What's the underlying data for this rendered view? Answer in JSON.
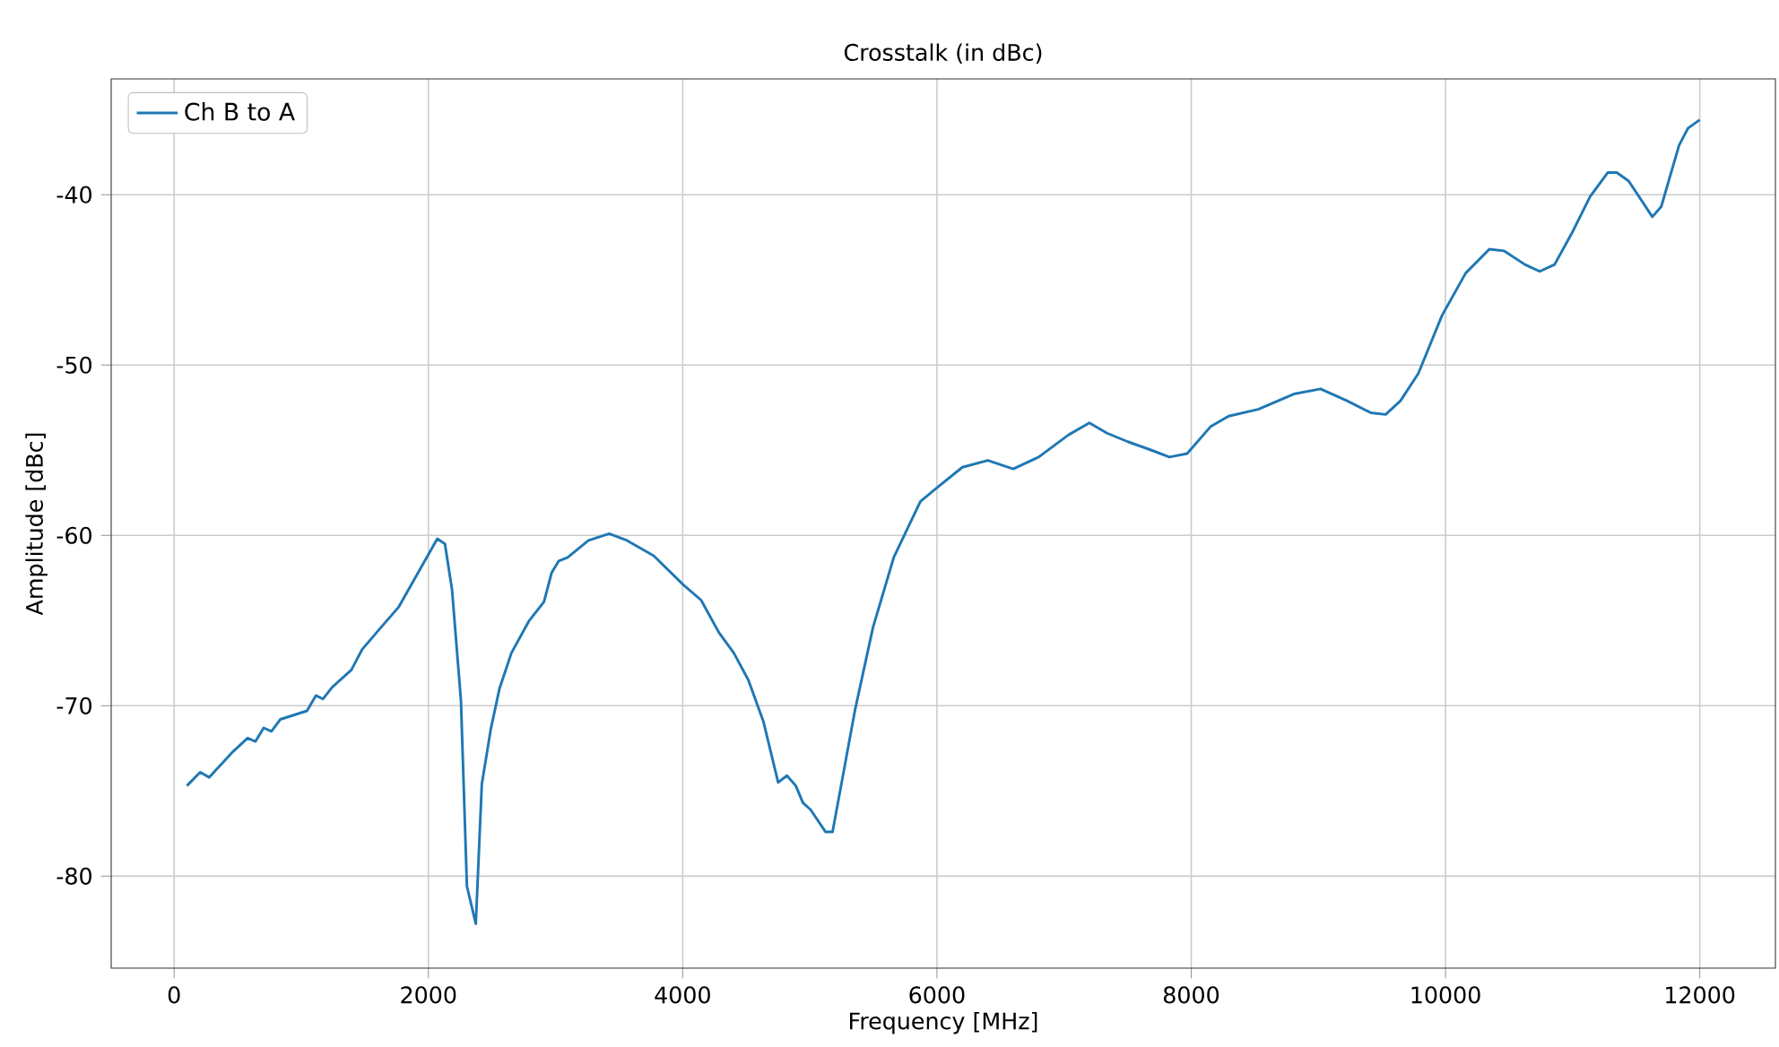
{
  "chart_data": {
    "type": "line",
    "title": "Crosstalk (in dBc)",
    "xlabel": "Frequency [MHz]",
    "ylabel": "Amplitude [dBc]",
    "xlim": [
      -495,
      12595
    ],
    "ylim": [
      -85.4,
      -33.2
    ],
    "xticks": [
      0,
      2000,
      4000,
      6000,
      8000,
      10000,
      12000
    ],
    "yticks": [
      -80,
      -70,
      -60,
      -50,
      -40
    ],
    "grid": true,
    "legend": "top left",
    "marker": "none",
    "line_style": "solid",
    "series": [
      {
        "name": "Ch B to A",
        "color": "#1f77b4",
        "x": [
          100,
          205,
          275,
          462,
          578,
          639,
          704,
          765,
          835,
          1045,
          1115,
          1171,
          1245,
          1394,
          1478,
          1627,
          1767,
          2070,
          2130,
          2186,
          2256,
          2303,
          2373,
          2420,
          2490,
          2559,
          2653,
          2793,
          2909,
          2969,
          3025,
          3095,
          3259,
          3422,
          3562,
          3655,
          3772,
          4005,
          4145,
          4285,
          4402,
          4517,
          4634,
          4751,
          4820,
          4890,
          4946,
          5006,
          5123,
          5179,
          5357,
          5497,
          5660,
          5870,
          6000,
          6200,
          6400,
          6600,
          6800,
          7035,
          7199,
          7338,
          7501,
          7688,
          7828,
          7968,
          8154,
          8294,
          8527,
          8807,
          9017,
          9226,
          9413,
          9529,
          9646,
          9786,
          9972,
          10159,
          10345,
          10462,
          10625,
          10741,
          10858,
          10998,
          11138,
          11277,
          11347,
          11441,
          11627,
          11697,
          11837,
          11907,
          12000
        ],
        "values": [
          -74.7,
          -73.9,
          -74.2,
          -72.7,
          -71.9,
          -72.1,
          -71.3,
          -71.5,
          -70.8,
          -70.3,
          -69.4,
          -69.6,
          -68.9,
          -67.9,
          -66.7,
          -65.4,
          -64.2,
          -60.2,
          -60.5,
          -63.2,
          -69.7,
          -80.6,
          -82.8,
          -74.6,
          -71.4,
          -69.0,
          -66.9,
          -65.0,
          -63.9,
          -62.2,
          -61.5,
          -61.3,
          -60.3,
          -59.9,
          -60.3,
          -60.7,
          -61.2,
          -62.9,
          -63.8,
          -65.7,
          -66.9,
          -68.5,
          -70.9,
          -74.5,
          -74.1,
          -74.7,
          -75.7,
          -76.1,
          -77.4,
          -77.4,
          -70.2,
          -65.4,
          -61.3,
          -58.0,
          -57.2,
          -56.0,
          -55.6,
          -56.1,
          -55.4,
          -54.1,
          -53.4,
          -54.0,
          -54.5,
          -55.0,
          -55.4,
          -55.2,
          -53.6,
          -53.0,
          -52.6,
          -51.7,
          -51.4,
          -52.1,
          -52.8,
          -52.9,
          -52.1,
          -50.5,
          -47.1,
          -44.6,
          -43.2,
          -43.3,
          -44.1,
          -44.5,
          -44.1,
          -42.2,
          -40.1,
          -38.7,
          -38.7,
          -39.2,
          -41.3,
          -40.7,
          -37.1,
          -36.1,
          -35.6
        ]
      }
    ]
  }
}
